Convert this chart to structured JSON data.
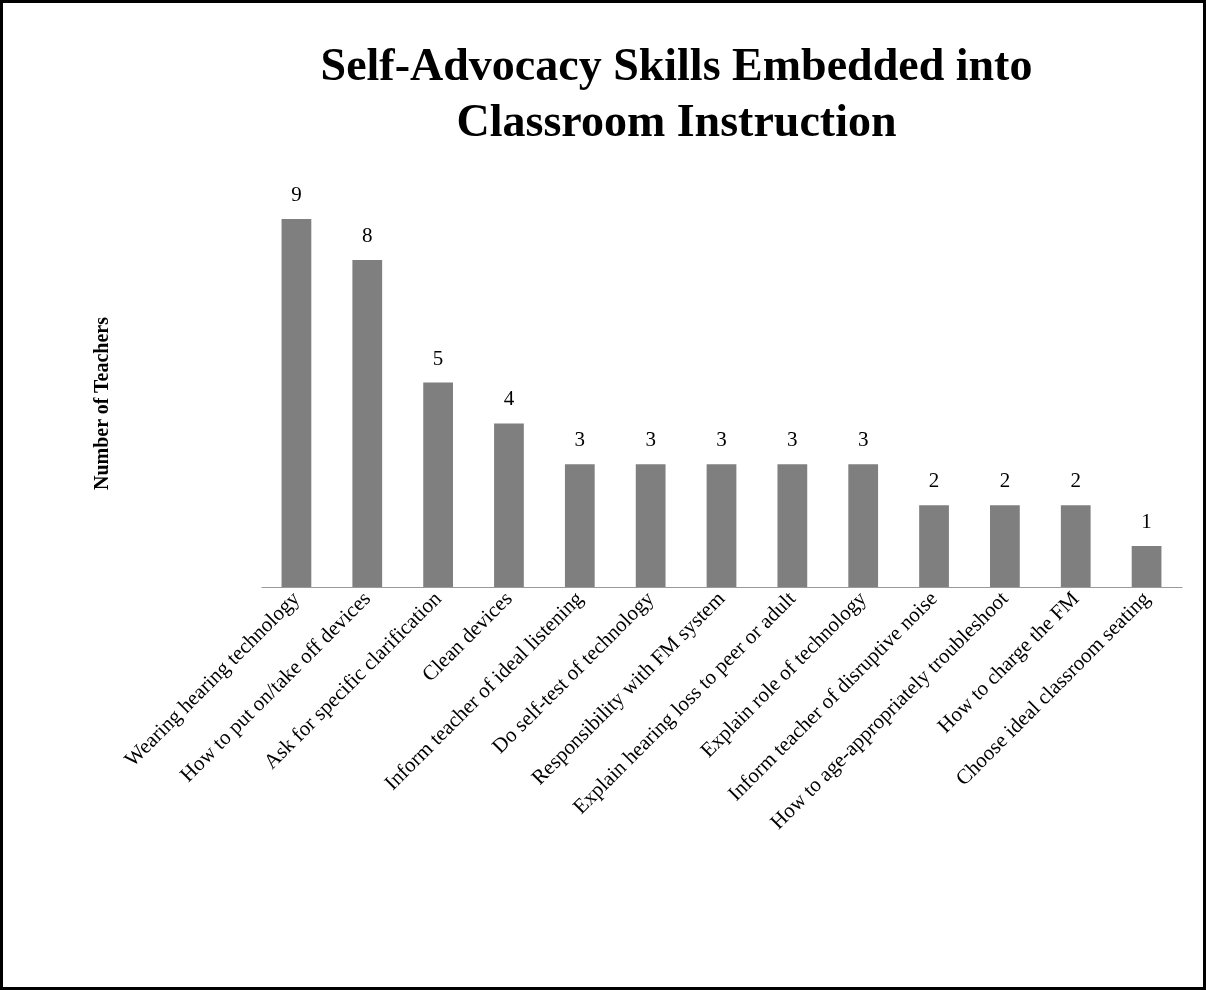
{
  "chart_data": {
    "type": "bar",
    "title": "Self-Advocacy Skills Embedded into\nClassroom Instruction",
    "ylabel": "Number of Teachers",
    "categories": [
      "Wearing hearing technology",
      "How to put on/take off devices",
      "Ask for specific clarification",
      "Clean devices",
      "Inform teacher of ideal listening",
      "Do self-test of technology",
      "Responsibility with FM system",
      "Explain hearing loss to peer or adult",
      "Explain role of technology",
      "Inform teacher of disruptive noise",
      "How to age-appropriately troubleshoot",
      "How to charge the FM",
      "Choose ideal classroom seating"
    ],
    "values": [
      9,
      8,
      5,
      4,
      3,
      3,
      3,
      3,
      3,
      2,
      2,
      2,
      1
    ],
    "color": "#7f7f7f",
    "data_labels": true
  }
}
